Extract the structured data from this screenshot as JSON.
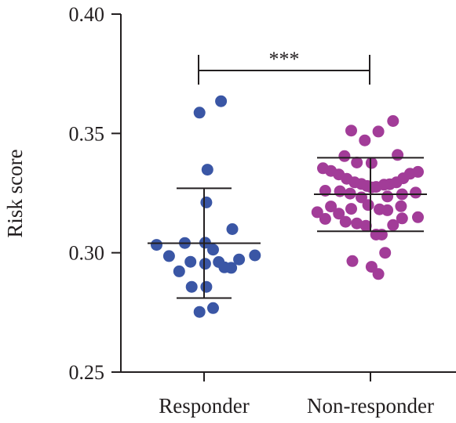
{
  "chart_data": {
    "type": "scatter",
    "ylabel": "Risk score",
    "ylim": [
      0.25,
      0.4
    ],
    "yticks": [
      "0.25",
      "0.30",
      "0.35",
      "0.40"
    ],
    "categories": [
      "Responder",
      "Non-responder"
    ],
    "significance": "***",
    "colors": {
      "Responder": "#3a56a5",
      "Non-responder": "#a23c98",
      "axis": "#231f20"
    },
    "series": [
      {
        "category": "Responder",
        "mean": 0.304,
        "sd_low": 0.281,
        "sd_high": 0.327,
        "points": [
          {
            "offset": 0.3,
            "y": 0.3635
          },
          {
            "offset": -0.08,
            "y": 0.3587
          },
          {
            "offset": 0.06,
            "y": 0.3348
          },
          {
            "offset": 0.04,
            "y": 0.3211
          },
          {
            "offset": 0.5,
            "y": 0.3099
          },
          {
            "offset": -0.84,
            "y": 0.3033
          },
          {
            "offset": -0.34,
            "y": 0.3041
          },
          {
            "offset": 0.02,
            "y": 0.3042
          },
          {
            "offset": 0.16,
            "y": 0.3013
          },
          {
            "offset": -0.62,
            "y": 0.2986
          },
          {
            "offset": 0.9,
            "y": 0.2989
          },
          {
            "offset": 0.62,
            "y": 0.2972
          },
          {
            "offset": -0.24,
            "y": 0.2962
          },
          {
            "offset": 0.26,
            "y": 0.2961
          },
          {
            "offset": 0.02,
            "y": 0.2954
          },
          {
            "offset": 0.36,
            "y": 0.2939
          },
          {
            "offset": 0.48,
            "y": 0.2937
          },
          {
            "offset": -0.44,
            "y": 0.2922
          },
          {
            "offset": -0.22,
            "y": 0.2857
          },
          {
            "offset": 0.04,
            "y": 0.2857
          },
          {
            "offset": 0.16,
            "y": 0.2768
          },
          {
            "offset": -0.08,
            "y": 0.2752
          }
        ]
      },
      {
        "category": "Non-responder",
        "mean": 0.3245,
        "sd_low": 0.309,
        "sd_high": 0.3398,
        "points": [
          {
            "offset": 0.4,
            "y": 0.3552
          },
          {
            "offset": -0.34,
            "y": 0.3512
          },
          {
            "offset": 0.14,
            "y": 0.3508
          },
          {
            "offset": -0.1,
            "y": 0.3471
          },
          {
            "offset": 0.48,
            "y": 0.341
          },
          {
            "offset": -0.46,
            "y": 0.3405
          },
          {
            "offset": -0.24,
            "y": 0.3378
          },
          {
            "offset": 0.02,
            "y": 0.3376
          },
          {
            "offset": -0.84,
            "y": 0.3354
          },
          {
            "offset": -0.7,
            "y": 0.3343
          },
          {
            "offset": 0.84,
            "y": 0.3339
          },
          {
            "offset": -0.56,
            "y": 0.3328
          },
          {
            "offset": 0.7,
            "y": 0.3331
          },
          {
            "offset": 0.58,
            "y": 0.3312
          },
          {
            "offset": -0.42,
            "y": 0.331
          },
          {
            "offset": -0.28,
            "y": 0.3295
          },
          {
            "offset": 0.46,
            "y": 0.3295
          },
          {
            "offset": -0.16,
            "y": 0.3288
          },
          {
            "offset": 0.34,
            "y": 0.3287
          },
          {
            "offset": 0.24,
            "y": 0.3285
          },
          {
            "offset": -0.06,
            "y": 0.328
          },
          {
            "offset": 0.1,
            "y": 0.3276
          },
          {
            "offset": 0.02,
            "y": 0.3274
          },
          {
            "offset": -0.8,
            "y": 0.326
          },
          {
            "offset": -0.54,
            "y": 0.3258
          },
          {
            "offset": 0.8,
            "y": 0.3252
          },
          {
            "offset": -0.36,
            "y": 0.3248
          },
          {
            "offset": 0.56,
            "y": 0.3245
          },
          {
            "offset": 0.3,
            "y": 0.3236
          },
          {
            "offset": -0.16,
            "y": 0.3232
          },
          {
            "offset": -0.04,
            "y": 0.32
          },
          {
            "offset": -0.7,
            "y": 0.3194
          },
          {
            "offset": 0.54,
            "y": 0.3195
          },
          {
            "offset": -0.34,
            "y": 0.3184
          },
          {
            "offset": 0.16,
            "y": 0.3182
          },
          {
            "offset": -0.94,
            "y": 0.317
          },
          {
            "offset": 0.3,
            "y": 0.3178
          },
          {
            "offset": -0.56,
            "y": 0.3164
          },
          {
            "offset": 0.84,
            "y": 0.3149
          },
          {
            "offset": 0.56,
            "y": 0.3144
          },
          {
            "offset": -0.8,
            "y": 0.3142
          },
          {
            "offset": -0.44,
            "y": 0.313
          },
          {
            "offset": -0.24,
            "y": 0.3123
          },
          {
            "offset": 0.4,
            "y": 0.3116
          },
          {
            "offset": -0.08,
            "y": 0.3113
          },
          {
            "offset": 0.1,
            "y": 0.3076
          },
          {
            "offset": 0.2,
            "y": 0.3076
          },
          {
            "offset": 0.26,
            "y": 0.3
          },
          {
            "offset": -0.32,
            "y": 0.2965
          },
          {
            "offset": 0.02,
            "y": 0.2941
          },
          {
            "offset": 0.14,
            "y": 0.2911
          }
        ]
      }
    ]
  }
}
